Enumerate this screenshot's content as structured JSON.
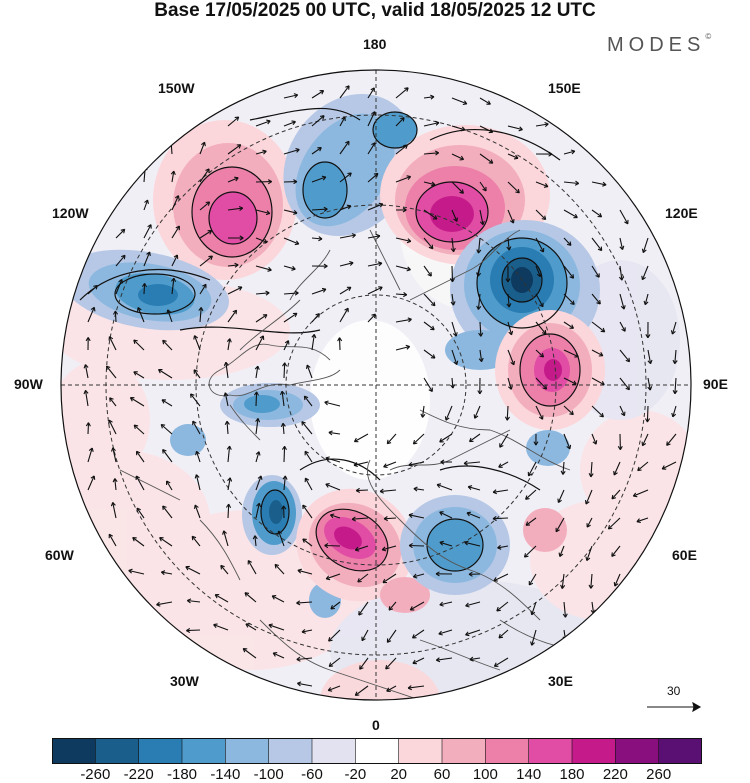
{
  "header": {
    "title": "Base 17/05/2025 00 UTC, valid 18/05/2025 12 UTC",
    "brand": "MODES",
    "brand_mark": "©"
  },
  "map": {
    "projection": "north-polar-stereographic",
    "meridian_labels": {
      "top": "180",
      "bottom": "0",
      "left": "90W",
      "right": "90E",
      "upper_left_1": "150W",
      "upper_left_2": "120W",
      "lower_left_1": "60W",
      "lower_left_2": "30W",
      "upper_right_1": "150E",
      "upper_right_2": "120E",
      "lower_right_1": "60E",
      "lower_right_2": "30E"
    },
    "wind_reference_label": "30",
    "anomaly_centers": [
      {
        "name": "positive-anomaly-150W",
        "value": 220
      },
      {
        "name": "negative-anomaly-170W",
        "value": -180
      },
      {
        "name": "positive-anomaly-150E",
        "value": 260
      },
      {
        "name": "negative-anomaly-120E",
        "value": -260
      },
      {
        "name": "positive-anomaly-90E",
        "value": 220
      },
      {
        "name": "negative-anomaly-115W",
        "value": -220
      },
      {
        "name": "negative-anomaly-80W",
        "value": -140
      },
      {
        "name": "negative-anomaly-45W",
        "value": -220
      },
      {
        "name": "positive-anomaly-20W",
        "value": 240
      },
      {
        "name": "negative-anomaly-30E",
        "value": -180
      }
    ]
  },
  "colorbar": {
    "colors": [
      "#0d3a5e",
      "#1a5f8c",
      "#2a7db2",
      "#4f9ccc",
      "#8cb8df",
      "#b6c8e6",
      "#e2e2f1",
      "#ffffff",
      "#fbd6da",
      "#f3aebe",
      "#ec80a9",
      "#e14ca4",
      "#c51b8a",
      "#8a0f7e",
      "#5a0f73"
    ],
    "ticks": [
      "-260",
      "-220",
      "-180",
      "-140",
      "-100",
      "-60",
      "-20",
      "20",
      "60",
      "100",
      "140",
      "180",
      "220",
      "260"
    ]
  },
  "colors": {
    "land_outline": "#555555",
    "grid": "#333333",
    "background": "#ffffff"
  }
}
